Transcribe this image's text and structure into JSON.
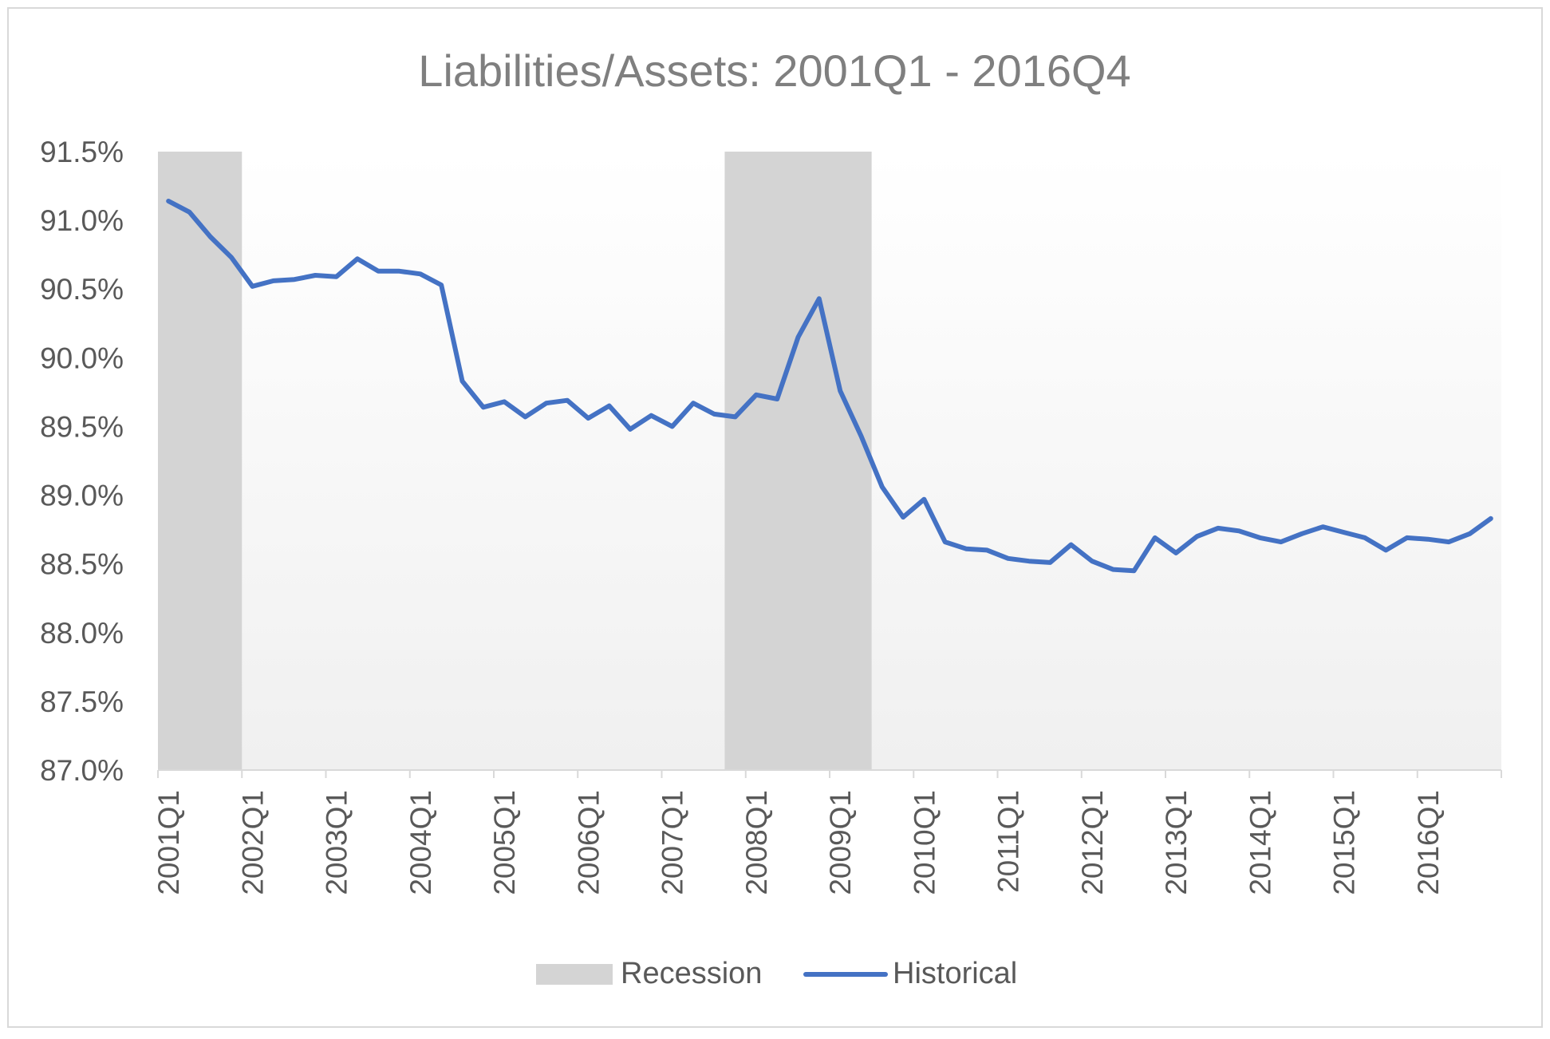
{
  "chart_data": {
    "type": "line",
    "title": "Liabilities/Assets: 2001Q1 - 2016Q4",
    "xlabel": "",
    "ylabel": "",
    "ylim": [
      0.87,
      0.915
    ],
    "y_ticks": [
      "91.5%",
      "91.0%",
      "90.5%",
      "90.0%",
      "89.5%",
      "89.0%",
      "88.5%",
      "88.0%",
      "87.5%",
      "87.0%"
    ],
    "y_tick_values": [
      0.915,
      0.91,
      0.905,
      0.9,
      0.895,
      0.89,
      0.885,
      0.88,
      0.875,
      0.87
    ],
    "x_tick_labels": [
      "2001Q1",
      "2002Q1",
      "2003Q1",
      "2004Q1",
      "2005Q1",
      "2006Q1",
      "2007Q1",
      "2008Q1",
      "2009Q1",
      "2010Q1",
      "2011Q1",
      "2012Q1",
      "2013Q1",
      "2014Q1",
      "2015Q1",
      "2016Q1"
    ],
    "categories": [
      "2001Q1",
      "2001Q2",
      "2001Q3",
      "2001Q4",
      "2002Q1",
      "2002Q2",
      "2002Q3",
      "2002Q4",
      "2003Q1",
      "2003Q2",
      "2003Q3",
      "2003Q4",
      "2004Q1",
      "2004Q2",
      "2004Q3",
      "2004Q4",
      "2005Q1",
      "2005Q2",
      "2005Q3",
      "2005Q4",
      "2006Q1",
      "2006Q2",
      "2006Q3",
      "2006Q4",
      "2007Q1",
      "2007Q2",
      "2007Q3",
      "2007Q4",
      "2008Q1",
      "2008Q2",
      "2008Q3",
      "2008Q4",
      "2009Q1",
      "2009Q2",
      "2009Q3",
      "2009Q4",
      "2010Q1",
      "2010Q2",
      "2010Q3",
      "2010Q4",
      "2011Q1",
      "2011Q2",
      "2011Q3",
      "2011Q4",
      "2012Q1",
      "2012Q2",
      "2012Q3",
      "2012Q4",
      "2013Q1",
      "2013Q2",
      "2013Q3",
      "2013Q4",
      "2014Q1",
      "2014Q2",
      "2014Q3",
      "2014Q4",
      "2015Q1",
      "2015Q2",
      "2015Q3",
      "2015Q4",
      "2016Q1",
      "2016Q2",
      "2016Q3",
      "2016Q4"
    ],
    "series": [
      {
        "name": "Historical",
        "color": "#4472C4",
        "values": [
          0.9114,
          0.9106,
          0.9088,
          0.9073,
          0.9052,
          0.9056,
          0.9057,
          0.906,
          0.9059,
          0.9072,
          0.9063,
          0.9063,
          0.9061,
          0.9053,
          0.8983,
          0.8964,
          0.8968,
          0.8957,
          0.8967,
          0.8969,
          0.8956,
          0.8965,
          0.8948,
          0.8958,
          0.895,
          0.8967,
          0.8959,
          0.8957,
          0.8973,
          0.897,
          0.9015,
          0.9043,
          0.8976,
          0.8943,
          0.8906,
          0.8884,
          0.8897,
          0.8866,
          0.8861,
          0.886,
          0.8854,
          0.8852,
          0.8851,
          0.8864,
          0.8852,
          0.8846,
          0.8845,
          0.8869,
          0.8858,
          0.887,
          0.8876,
          0.8874,
          0.8869,
          0.8866,
          0.8872,
          0.8877,
          0.8873,
          0.8869,
          0.886,
          0.8869,
          0.8868,
          0.8866,
          0.8872,
          0.8883
        ]
      }
    ],
    "recessions": [
      {
        "start": "2001Q1",
        "end": "2001Q4"
      },
      {
        "start": "2007Q4",
        "end": "2009Q2"
      }
    ],
    "recession_color": "#D4D4D4",
    "legend": {
      "position": "bottom",
      "items": [
        {
          "label": "Recession",
          "kind": "band",
          "color": "#D4D4D4"
        },
        {
          "label": "Historical",
          "kind": "line",
          "color": "#4472C4"
        }
      ]
    },
    "grid": false
  }
}
